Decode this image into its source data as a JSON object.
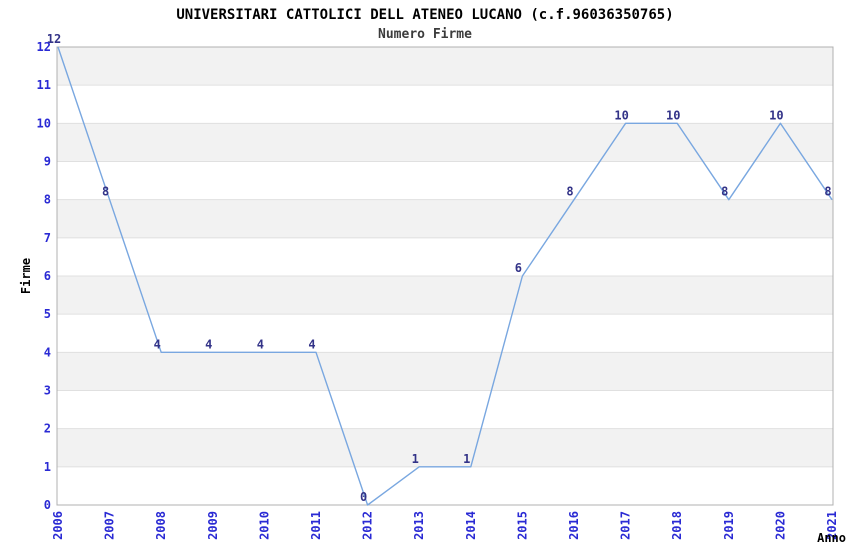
{
  "chart_data": {
    "type": "line",
    "title": "UNIVERSITARI CATTOLICI DELL ATENEO LUCANO (c.f.96036350765)",
    "subtitle": "Numero Firme",
    "xlabel": "Anno",
    "ylabel": "Firme",
    "categories": [
      "2006",
      "2007",
      "2008",
      "2009",
      "2010",
      "2011",
      "2012",
      "2013",
      "2014",
      "2015",
      "2016",
      "2017",
      "2018",
      "2019",
      "2020",
      "2021"
    ],
    "values": [
      12,
      8,
      4,
      4,
      4,
      4,
      0,
      1,
      1,
      6,
      8,
      10,
      10,
      8,
      10,
      8
    ],
    "ylim": [
      0,
      12
    ],
    "ytick_step": 1,
    "yticks": [
      "0",
      "1",
      "2",
      "3",
      "4",
      "5",
      "6",
      "7",
      "8",
      "9",
      "10",
      "11",
      "12"
    ],
    "point_labels_visible": true,
    "legend": "none",
    "grid": "horizontal-bands",
    "colors": {
      "line": "#79a7e0",
      "tick_label": "#2a2ad4",
      "point_label": "#333388",
      "band": "#f2f2f2",
      "grid_line": "#e0e0e0",
      "plot_border": "#b0b0b0",
      "title": "#000000",
      "subtitle": "#3c3c3c",
      "background": "#ffffff"
    }
  }
}
